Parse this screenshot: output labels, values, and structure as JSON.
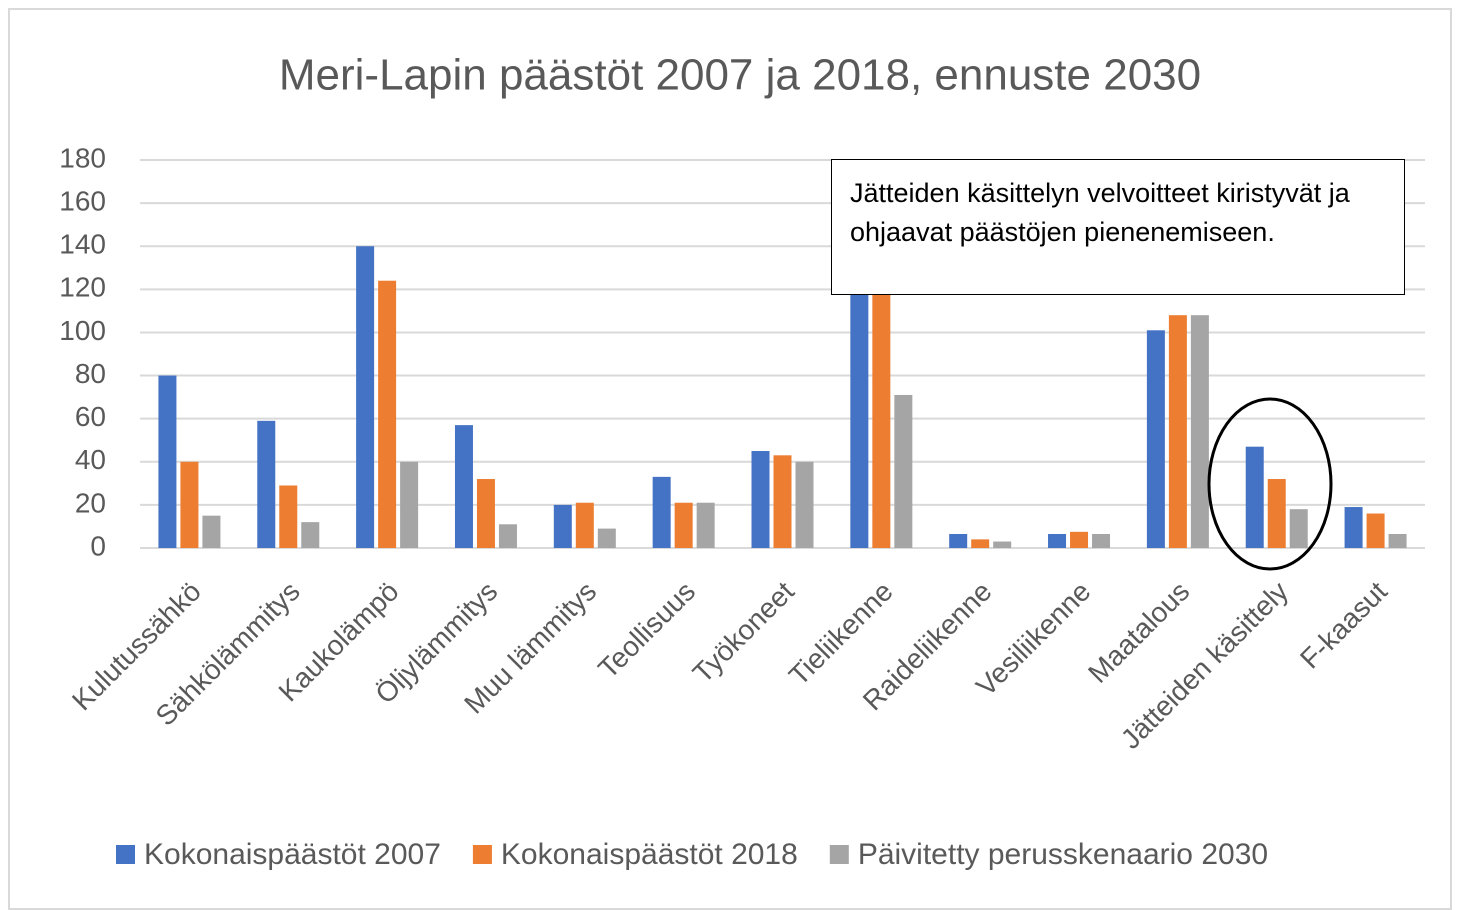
{
  "chart_data": {
    "type": "bar",
    "title": "Meri-Lapin päästöt 2007 ja 2018, ennuste 2030",
    "categories": [
      "Kulutussähkö",
      "Sähkölämmitys",
      "Kaukolämpö",
      "Öljylämmitys",
      "Muu lämmitys",
      "Teollisuus",
      "Työkoneet",
      "Tieliikenne",
      "Raideliikenne",
      "Vesiliikenne",
      "Maatalous",
      "Jätteiden käsittely",
      "F-kaasut"
    ],
    "series": [
      {
        "name": "Kokonaispäästöt 2007",
        "color": "#4472c4",
        "values": [
          80,
          59,
          140,
          57,
          20,
          33,
          45,
          135,
          6.5,
          6.5,
          101,
          47,
          19
        ]
      },
      {
        "name": "Kokonaispäästöt 2018",
        "color": "#ed7d31",
        "values": [
          40,
          29,
          124,
          32,
          21,
          21,
          43,
          125,
          4,
          7.5,
          108,
          32,
          16
        ]
      },
      {
        "name": "Päivitetty perusskenaario 2030",
        "color": "#a5a5a5",
        "values": [
          15,
          12,
          40,
          11,
          9,
          21,
          40,
          71,
          3,
          6.5,
          108,
          18,
          6.5
        ]
      }
    ],
    "ylim": [
      0,
      180
    ],
    "yticks": [
      0,
      20,
      40,
      60,
      80,
      100,
      120,
      140,
      160,
      180
    ],
    "grid": true,
    "legend": "bottom",
    "annotation": "Jätteiden käsittelyn velvoitteet kiristyvät ja ohjaavat päästöjen pienenemiseen."
  }
}
